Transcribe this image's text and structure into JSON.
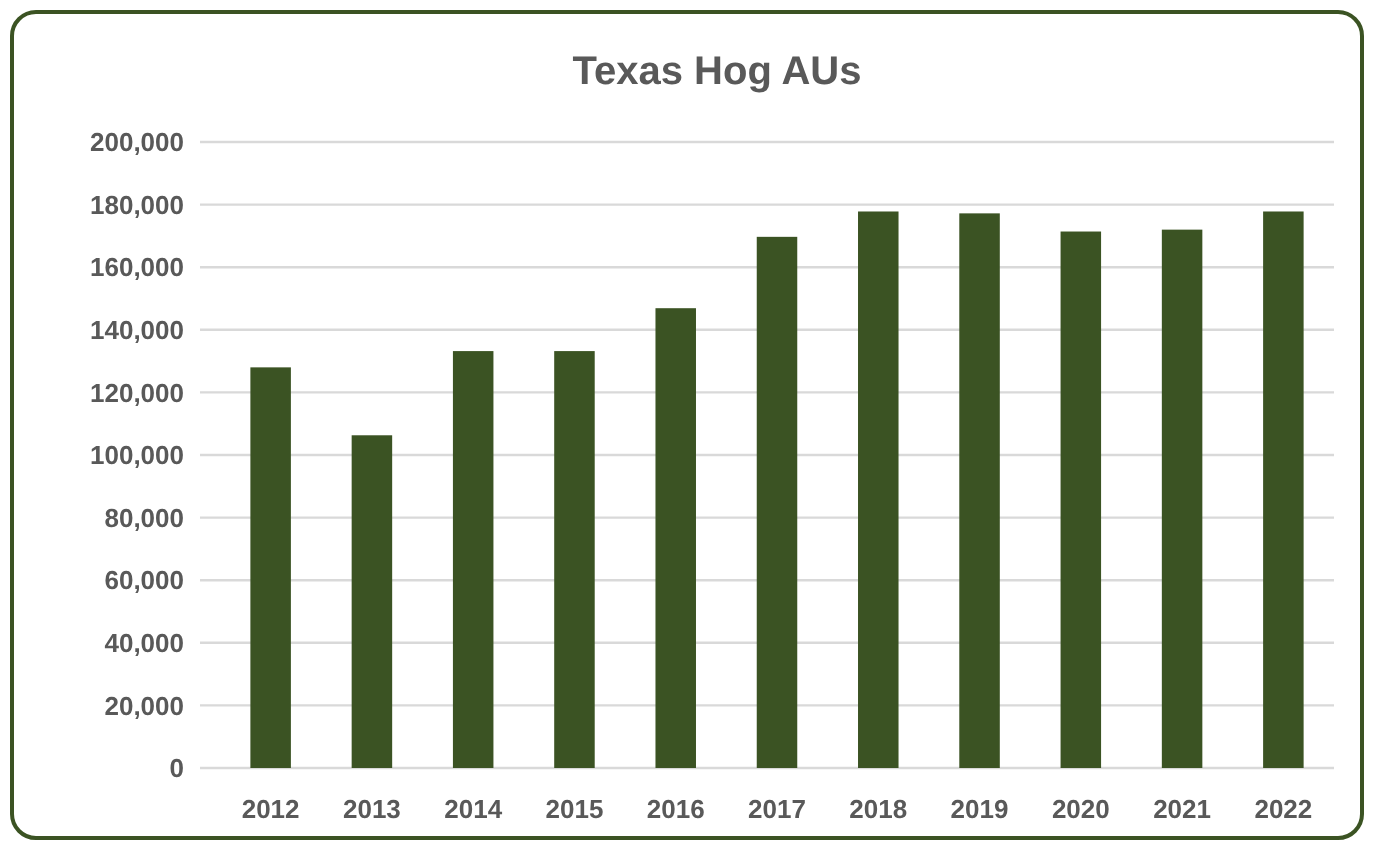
{
  "chart_data": {
    "type": "bar",
    "title": "Texas Hog AUs",
    "categories": [
      "2012",
      "2013",
      "2014",
      "2015",
      "2016",
      "2017",
      "2018",
      "2019",
      "2020",
      "2021",
      "2022"
    ],
    "values": [
      128000,
      106300,
      133200,
      133200,
      146900,
      169700,
      177800,
      177200,
      171400,
      172000,
      177800
    ],
    "color": "#3b5323",
    "ylim": [
      0,
      200000
    ],
    "yticks": [
      {
        "value": 0,
        "label": "0"
      },
      {
        "value": 20000,
        "label": "20,000"
      },
      {
        "value": 40000,
        "label": "40,000"
      },
      {
        "value": 60000,
        "label": "60,000"
      },
      {
        "value": 80000,
        "label": "80,000"
      },
      {
        "value": 100000,
        "label": "100,000"
      },
      {
        "value": 120000,
        "label": "120,000"
      },
      {
        "value": 140000,
        "label": "140,000"
      },
      {
        "value": 160000,
        "label": "160,000"
      },
      {
        "value": 180000,
        "label": "180,000"
      },
      {
        "value": 200000,
        "label": "200,000"
      }
    ],
    "grid": "y"
  }
}
